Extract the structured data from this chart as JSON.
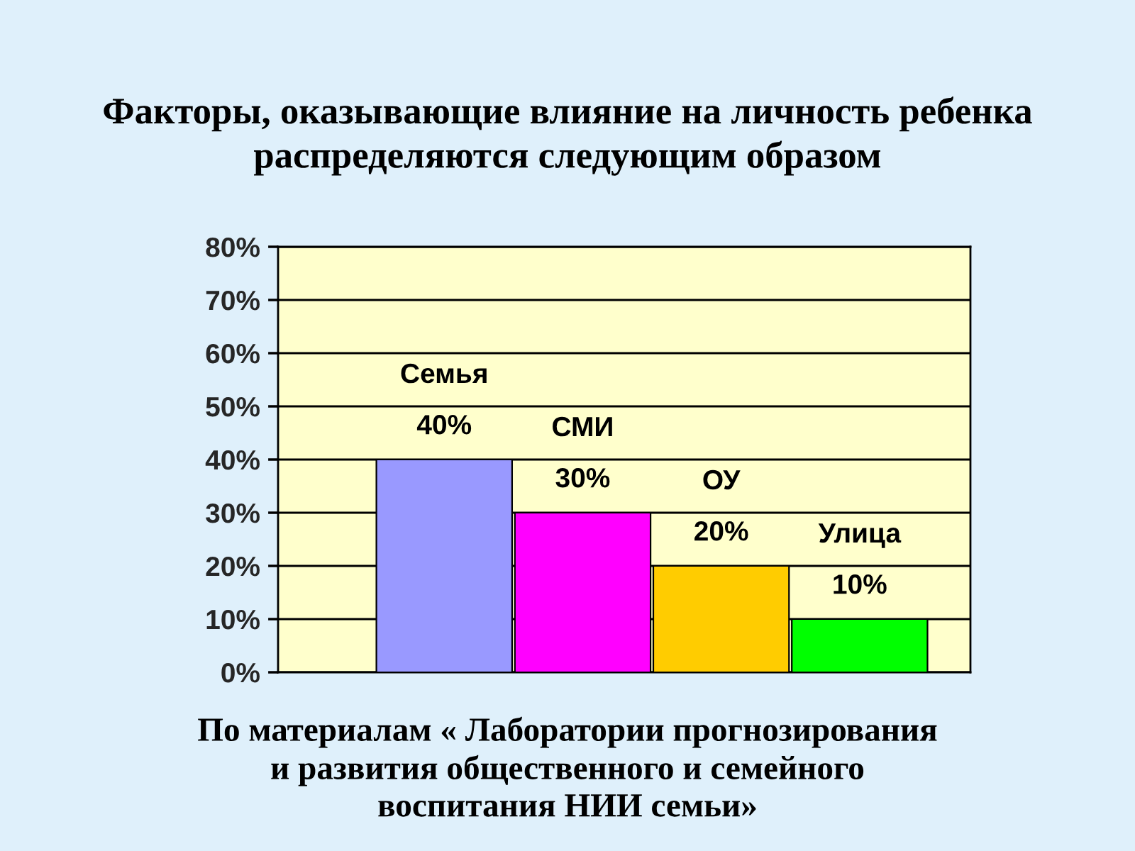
{
  "chart_data": {
    "type": "bar",
    "title": "Факторы, оказывающие влияние на личность ребенка\nраспределяются следующим образом",
    "categories": [
      "Семья",
      "СМИ",
      "ОУ",
      "Улица"
    ],
    "values": [
      40,
      30,
      20,
      10
    ],
    "colors": [
      "#9999ff",
      "#ff00ff",
      "#ffcc00",
      "#00ff00"
    ],
    "value_labels": [
      "40%",
      "30%",
      "20%",
      "10%"
    ],
    "ylim": [
      0,
      80
    ],
    "yticks": [
      {
        "value": 0,
        "label": "0%"
      },
      {
        "value": 10,
        "label": "10%"
      },
      {
        "value": 20,
        "label": "20%"
      },
      {
        "value": 30,
        "label": "30%"
      },
      {
        "value": 40,
        "label": "40%"
      },
      {
        "value": 50,
        "label": "50%"
      },
      {
        "value": 60,
        "label": "60%"
      },
      {
        "value": 70,
        "label": "70%"
      },
      {
        "value": 80,
        "label": "80%"
      }
    ],
    "grid": "y",
    "tick_labels": "y",
    "annotations": [
      "По материалам « Лаборатории прогнозирования\nи развития общественного и семейного\nвоспитания НИИ семьи»"
    ]
  }
}
